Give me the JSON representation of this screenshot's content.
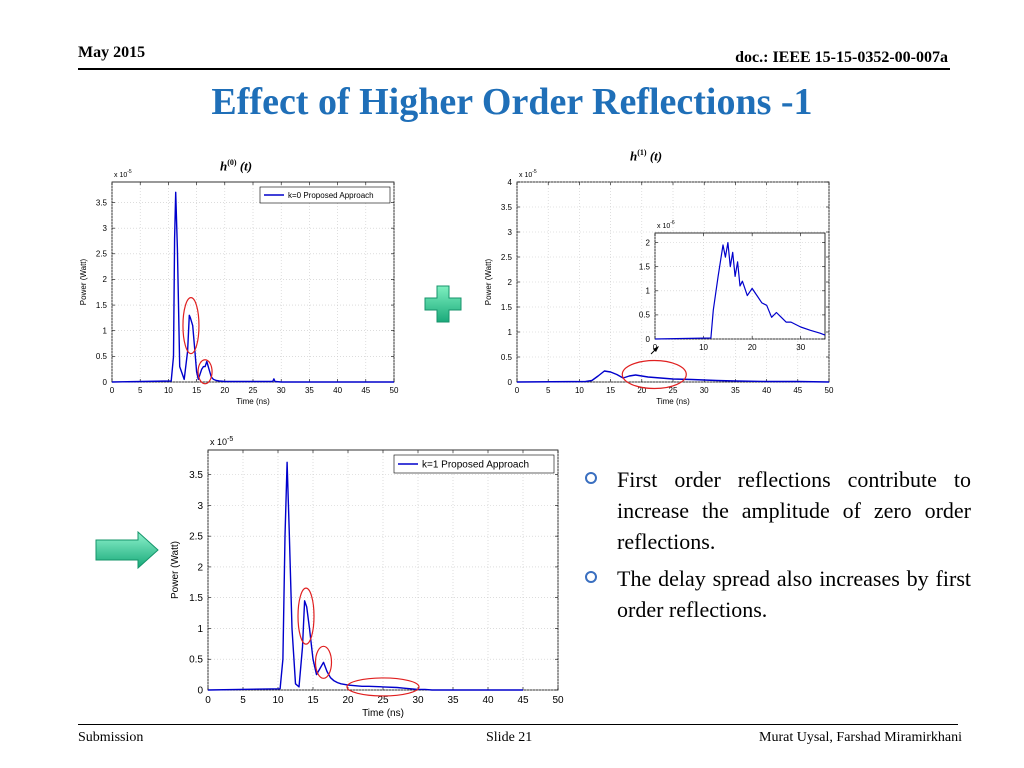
{
  "header": {
    "date": "May 2015",
    "doc_id": "doc.: IEEE 15-15-0352-00-007a"
  },
  "title": "Effect of Higher Order Reflections -1",
  "bullets": [
    "First order reflections contribute to increase the amplitude of zero order reflections.",
    "The delay spread also increases by first order reflections."
  ],
  "footer": {
    "left": "Submission",
    "center": "Slide 21",
    "right": "Murat Uysal, Farshad Miramirkhani"
  },
  "formulas": {
    "h0": {
      "base": "h",
      "sup": "(0)",
      "arg": "(t)"
    },
    "h1": {
      "base": "h",
      "sup": "(1)",
      "arg": "(t)"
    }
  },
  "icons": {
    "plus": "plus-icon",
    "arrow": "arrow-right-icon"
  },
  "colors": {
    "title": "#1f6fb8",
    "series": "#0000cc",
    "highlight": "#e02020",
    "plus": "#2fc79a",
    "arrow": "#22c79a"
  },
  "chart_data": [
    {
      "id": "c1",
      "type": "line",
      "xlabel": "Time (ns)",
      "ylabel": "Power (Watt)",
      "scale_label": "x 10",
      "scale_exp": "-5",
      "xlim": [
        0,
        50
      ],
      "ylim": [
        0,
        3.9
      ],
      "xticks": [
        0,
        5,
        10,
        15,
        20,
        25,
        30,
        35,
        40,
        45,
        50
      ],
      "yticks": [
        0,
        0.5,
        1,
        1.5,
        2,
        2.5,
        3,
        3.5
      ],
      "grid": true,
      "legend": "top-right",
      "series": [
        {
          "name": "k=0 Proposed Approach",
          "x": [
            0,
            10.5,
            10.9,
            11.1,
            11.3,
            11.6,
            12,
            12.8,
            13.4,
            13.7,
            13.9,
            14.3,
            14.7,
            15,
            15.3,
            15.6,
            15.9,
            16.2,
            16.5,
            16.8,
            17.2,
            17.6,
            18,
            18.5,
            19,
            20,
            22,
            25,
            27,
            28.5,
            28.7,
            28.9,
            30,
            35,
            40,
            45,
            50
          ],
          "y": [
            0,
            0.02,
            0.5,
            2.8,
            3.7,
            2.6,
            0.3,
            0.05,
            0.6,
            1.3,
            1.25,
            1.1,
            0.6,
            0.2,
            0.05,
            0.15,
            0.25,
            0.3,
            0.3,
            0.4,
            0.25,
            0.1,
            0.05,
            0.03,
            0.02,
            0.01,
            0.01,
            0.01,
            0.01,
            0.01,
            0.06,
            0.01,
            0,
            0,
            0,
            0,
            0
          ]
        }
      ],
      "highlights": [
        {
          "x": 14,
          "y": 1.1
        },
        {
          "x": 16.5,
          "y": 0.2
        }
      ]
    },
    {
      "id": "c2",
      "type": "line",
      "xlabel": "Time (ns)",
      "ylabel": "Power (Watt)",
      "scale_label": "x 10",
      "scale_exp": "-5",
      "xlim": [
        0,
        50
      ],
      "ylim": [
        0,
        4
      ],
      "xticks": [
        0,
        5,
        10,
        15,
        20,
        25,
        30,
        35,
        40,
        45,
        50
      ],
      "yticks": [
        0,
        0.5,
        1,
        1.5,
        2,
        2.5,
        3,
        3.5,
        4
      ],
      "grid": true,
      "series": [
        {
          "name": "",
          "x": [
            0,
            11,
            12,
            13,
            14,
            15,
            16,
            17,
            18,
            19,
            20,
            21,
            22,
            23,
            25,
            28,
            30,
            32,
            35,
            40,
            45,
            50
          ],
          "y": [
            0,
            0.01,
            0.03,
            0.12,
            0.22,
            0.2,
            0.15,
            0.08,
            0.12,
            0.14,
            0.12,
            0.1,
            0.09,
            0.08,
            0.06,
            0.05,
            0.04,
            0.03,
            0.02,
            0.01,
            0.01,
            0
          ]
        }
      ],
      "highlights": [
        {
          "x": 22,
          "y": 0.15
        }
      ],
      "inset": {
        "scale_label": "x 10",
        "scale_exp": "-6",
        "xlim": [
          0,
          35
        ],
        "ylim": [
          0,
          2.2
        ],
        "xticks": [
          0,
          10,
          20,
          30
        ],
        "yticks": [
          0,
          0.5,
          1,
          1.5,
          2
        ],
        "x": [
          0,
          11.5,
          12,
          13,
          14,
          14.5,
          15,
          15.5,
          16,
          16.5,
          17,
          17.5,
          18,
          19,
          20,
          21,
          22,
          23,
          24,
          25,
          26,
          27,
          28,
          30,
          32,
          34,
          35
        ],
        "y": [
          0,
          0.02,
          0.6,
          1.3,
          1.95,
          1.7,
          2.0,
          1.5,
          1.8,
          1.3,
          1.6,
          1.1,
          1.2,
          0.9,
          1.05,
          0.9,
          0.75,
          0.7,
          0.45,
          0.55,
          0.45,
          0.35,
          0.35,
          0.25,
          0.18,
          0.12,
          0.08
        ]
      }
    },
    {
      "id": "c3",
      "type": "line",
      "xlabel": "Time (ns)",
      "ylabel": "Power (Watt)",
      "scale_label": "x 10",
      "scale_exp": "-5",
      "xlim": [
        0,
        50
      ],
      "ylim": [
        0,
        3.9
      ],
      "xticks": [
        0,
        5,
        10,
        15,
        20,
        25,
        30,
        35,
        40,
        45,
        50
      ],
      "yticks": [
        0,
        0.5,
        1,
        1.5,
        2,
        2.5,
        3,
        3.5
      ],
      "grid": true,
      "legend": "top-right",
      "series": [
        {
          "name": "k=1 Proposed Approach",
          "x": [
            0,
            10.3,
            10.7,
            11,
            11.3,
            11.6,
            12,
            12.5,
            13,
            13.5,
            13.8,
            14.1,
            14.5,
            15,
            15.5,
            16,
            16.5,
            17,
            17.5,
            18,
            18.5,
            19,
            20,
            21,
            22,
            23,
            25,
            27,
            28,
            29,
            30,
            31,
            32,
            45
          ],
          "y": [
            0,
            0.02,
            0.5,
            2.5,
            3.7,
            2.6,
            1.0,
            0.1,
            0.05,
            0.7,
            1.45,
            1.35,
            1.0,
            0.5,
            0.25,
            0.35,
            0.45,
            0.3,
            0.2,
            0.15,
            0.12,
            0.1,
            0.08,
            0.07,
            0.06,
            0.06,
            0.05,
            0.04,
            0.03,
            0.02,
            0.01,
            0.01,
            0,
            0
          ]
        }
      ],
      "highlights": [
        {
          "x": 14,
          "y": 1.2
        },
        {
          "x": 16.5,
          "y": 0.45
        },
        {
          "x": 25,
          "y": 0.05
        }
      ]
    }
  ]
}
